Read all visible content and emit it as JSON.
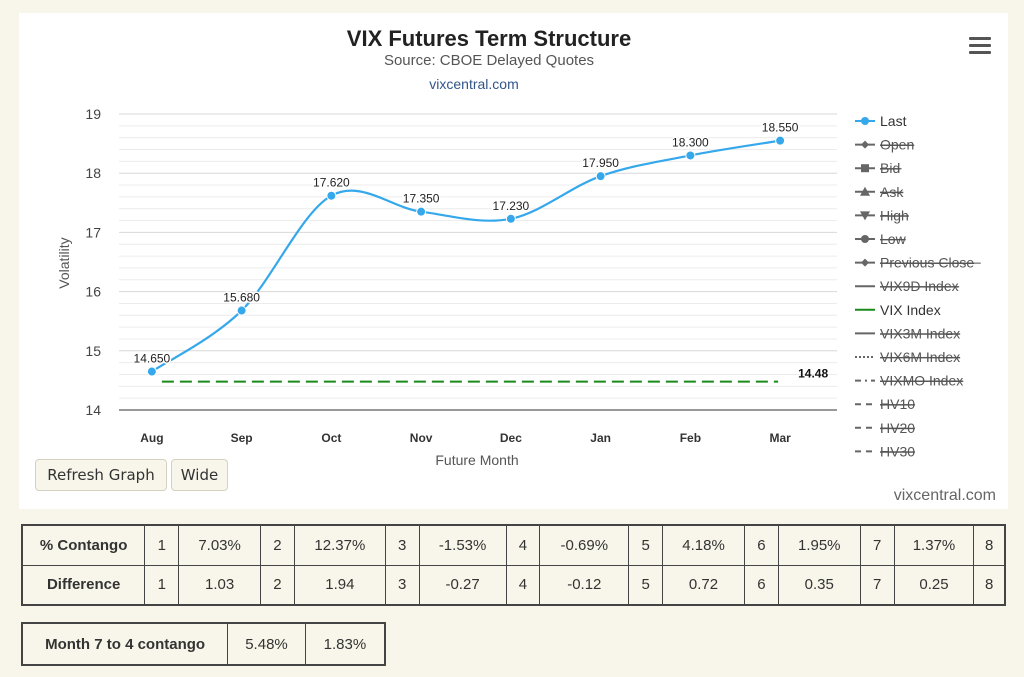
{
  "header": {
    "title": "VIX Futures Term Structure",
    "subtitle": "Source: CBOE Delayed Quotes",
    "link": "vixcentral.com"
  },
  "chart_data": {
    "type": "line",
    "categories": [
      "Aug",
      "Sep",
      "Oct",
      "Nov",
      "Dec",
      "Jan",
      "Feb",
      "Mar"
    ],
    "series": [
      {
        "name": "Last",
        "values": [
          14.65,
          15.68,
          17.62,
          17.35,
          17.23,
          17.95,
          18.3,
          18.55
        ],
        "labels": [
          "14.650",
          "15.680",
          "17.620",
          "17.350",
          "17.230",
          "17.950",
          "18.300",
          "18.550"
        ],
        "color": "#35a8ec"
      },
      {
        "name": "VIX Index",
        "values": [
          14.48,
          14.48,
          14.48,
          14.48,
          14.48,
          14.48,
          14.48,
          14.48
        ],
        "color": "#1a8a1a",
        "end_label": "14.48"
      }
    ],
    "xlabel": "Future Month",
    "ylabel": "Volatility",
    "ylim": [
      14,
      19
    ],
    "yticks": [
      "14",
      "15",
      "16",
      "17",
      "18",
      "19"
    ],
    "grid": true,
    "legend_position": "right",
    "legend": [
      {
        "name": "Last",
        "symbol": "circle-line",
        "active": true,
        "color": "#35a8ec"
      },
      {
        "name": "Open",
        "symbol": "diamond-line",
        "active": false
      },
      {
        "name": "Bid",
        "symbol": "square-line",
        "active": false
      },
      {
        "name": "Ask",
        "symbol": "triangle-line",
        "active": false
      },
      {
        "name": "High",
        "symbol": "triangle-down-line",
        "active": false
      },
      {
        "name": "Low",
        "symbol": "circle-line",
        "active": false
      },
      {
        "name": "Previous Close",
        "symbol": "diamond-line",
        "active": false
      },
      {
        "name": "VIX9D Index",
        "symbol": "solid",
        "active": false
      },
      {
        "name": "VIX Index",
        "symbol": "solid",
        "active": true,
        "color": "#1a8a1a"
      },
      {
        "name": "VIX3M Index",
        "symbol": "solid",
        "active": false
      },
      {
        "name": "VIX6M Index",
        "symbol": "dotted",
        "active": false
      },
      {
        "name": "VIXMO Index",
        "symbol": "dashdot",
        "active": false
      },
      {
        "name": "HV10",
        "symbol": "dashed",
        "active": false
      },
      {
        "name": "HV20",
        "symbol": "dashed",
        "active": false
      },
      {
        "name": "HV30",
        "symbol": "dashed",
        "active": false
      }
    ]
  },
  "buttons": {
    "refresh": "Refresh Graph",
    "wide": "Wide"
  },
  "credit": "vixcentral.com",
  "contango_table": {
    "rows": [
      {
        "label": "% Contango",
        "cells": [
          "1",
          "7.03%",
          "2",
          "12.37%",
          "3",
          "-1.53%",
          "4",
          "-0.69%",
          "5",
          "4.18%",
          "6",
          "1.95%",
          "7",
          "1.37%",
          "8"
        ]
      },
      {
        "label": "Difference",
        "cells": [
          "1",
          "1.03",
          "2",
          "1.94",
          "3",
          "-0.27",
          "4",
          "-0.12",
          "5",
          "0.72",
          "6",
          "0.35",
          "7",
          "0.25",
          "8"
        ]
      }
    ]
  },
  "month_table": {
    "label": "Month 7 to 4 contango",
    "values": [
      "5.48%",
      "1.83%"
    ]
  }
}
